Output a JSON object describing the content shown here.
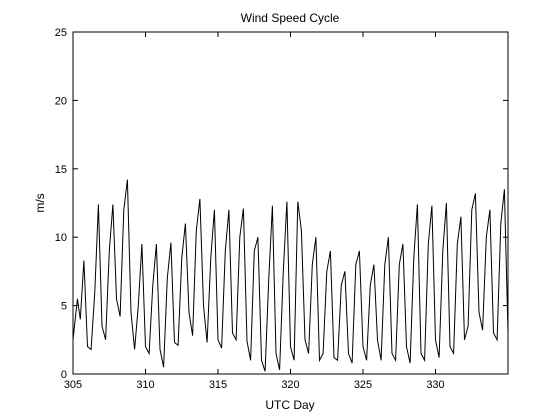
{
  "chart_data": {
    "type": "line",
    "title": "Wind Speed Cycle",
    "xlabel": "UTC Day",
    "ylabel": "m/s",
    "xlim": [
      305,
      335
    ],
    "ylim": [
      0,
      25
    ],
    "xticks": [
      305,
      310,
      315,
      320,
      325,
      330
    ],
    "yticks": [
      0,
      5,
      10,
      15,
      20,
      25
    ],
    "grid": false,
    "series": [
      {
        "color": "#000000",
        "x": [
          305.0,
          305.3,
          305.5,
          305.75,
          306.0,
          306.25,
          306.5,
          306.75,
          307.0,
          307.25,
          307.5,
          307.75,
          308.0,
          308.25,
          308.5,
          308.75,
          309.0,
          309.25,
          309.5,
          309.75,
          310.0,
          310.25,
          310.5,
          310.75,
          311.0,
          311.25,
          311.5,
          311.75,
          312.0,
          312.25,
          312.5,
          312.75,
          313.0,
          313.25,
          313.5,
          313.75,
          314.0,
          314.25,
          314.5,
          314.75,
          315.0,
          315.25,
          315.5,
          315.75,
          316.0,
          316.25,
          316.5,
          316.75,
          317.0,
          317.25,
          317.5,
          317.75,
          318.0,
          318.25,
          318.5,
          318.75,
          319.0,
          319.25,
          319.5,
          319.75,
          320.0,
          320.25,
          320.5,
          320.75,
          321.0,
          321.25,
          321.5,
          321.75,
          322.0,
          322.25,
          322.5,
          322.75,
          323.0,
          323.25,
          323.5,
          323.75,
          324.0,
          324.25,
          324.5,
          324.75,
          325.0,
          325.25,
          325.5,
          325.75,
          326.0,
          326.25,
          326.5,
          326.75,
          327.0,
          327.25,
          327.5,
          327.75,
          328.0,
          328.25,
          328.5,
          328.75,
          329.0,
          329.25,
          329.5,
          329.75,
          330.0,
          330.25,
          330.5,
          330.75,
          331.0,
          331.25,
          331.5,
          331.75,
          332.0,
          332.25,
          332.5,
          332.75,
          333.0,
          333.25,
          333.5,
          333.75,
          334.0,
          334.25,
          334.5,
          334.75,
          335.0
        ],
        "y": [
          2.5,
          5.5,
          4.0,
          8.3,
          2.0,
          1.8,
          6.0,
          12.4,
          3.5,
          2.5,
          9.0,
          12.4,
          5.5,
          4.2,
          12.0,
          14.2,
          4.5,
          1.8,
          5.0,
          9.5,
          2.0,
          1.5,
          6.5,
          9.5,
          1.8,
          0.5,
          7.0,
          9.6,
          2.3,
          2.1,
          8.5,
          11.0,
          4.5,
          2.8,
          10.5,
          12.8,
          5.0,
          2.3,
          8.5,
          12.0,
          2.5,
          1.9,
          9.0,
          12.0,
          3.0,
          2.5,
          10.0,
          12.1,
          2.4,
          1.0,
          9.0,
          10.0,
          1.0,
          0.2,
          7.0,
          12.3,
          1.5,
          0.3,
          7.5,
          12.6,
          2.0,
          1.0,
          12.6,
          10.5,
          2.5,
          1.5,
          8.0,
          10.0,
          1.0,
          1.5,
          7.5,
          9.0,
          1.2,
          1.0,
          6.5,
          7.5,
          1.5,
          0.8,
          8.0,
          9.0,
          2.0,
          1.0,
          6.5,
          8.0,
          2.5,
          1.0,
          8.0,
          10.0,
          1.5,
          1.0,
          8.0,
          9.5,
          2.0,
          0.8,
          8.5,
          12.4,
          1.5,
          1.0,
          9.5,
          12.3,
          2.5,
          1.2,
          9.0,
          12.5,
          2.0,
          1.5,
          9.5,
          11.5,
          2.5,
          3.5,
          12.0,
          13.2,
          4.5,
          3.2,
          10.0,
          12.0,
          3.0,
          2.5,
          11.0,
          13.5,
          3.0
        ]
      }
    ]
  }
}
